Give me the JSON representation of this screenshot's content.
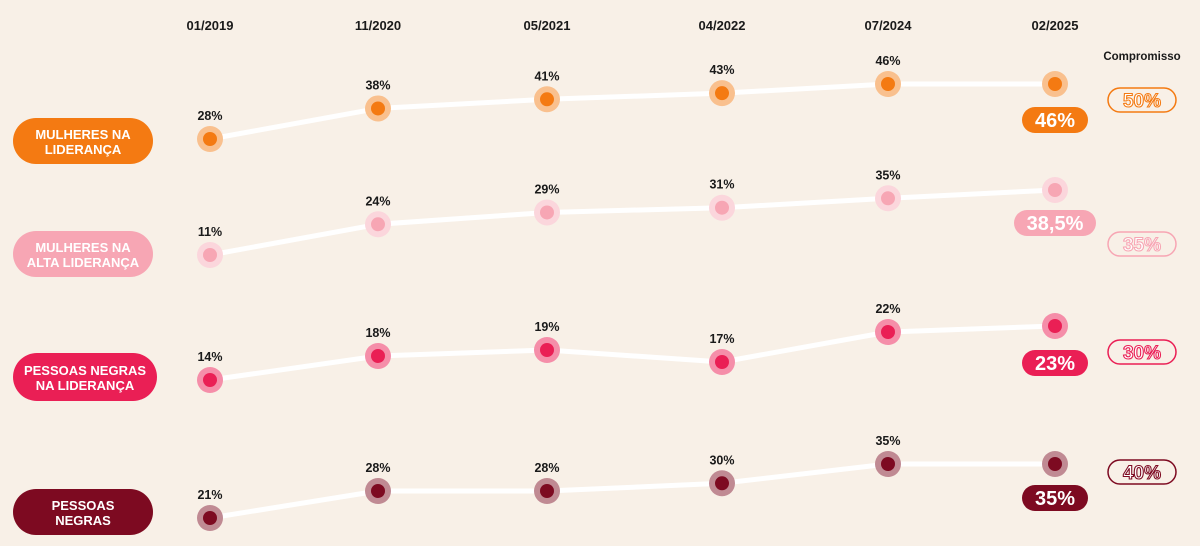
{
  "chart_data": {
    "type": "line",
    "categories": [
      "01/2019",
      "11/2020",
      "05/2021",
      "04/2022",
      "07/2024",
      "02/2025"
    ],
    "commitment_header": "Compromisso",
    "grid": false,
    "series": [
      {
        "name": "MULHERES NA LIDERANÇA",
        "values": [
          28,
          38,
          41,
          43,
          46,
          46
        ],
        "value_labels": [
          "28%",
          "38%",
          "41%",
          "43%",
          "46%",
          "46%"
        ],
        "current_label": "46%",
        "commitment_label": "50%",
        "color": "#f47a12",
        "halo_color": "#f9c08e",
        "label_text_color": "#ffffff",
        "badge_outline": false
      },
      {
        "name": "MULHERES NA ALTA LIDERANÇA",
        "values": [
          11,
          24,
          29,
          31,
          35,
          38.5
        ],
        "value_labels": [
          "11%",
          "24%",
          "29%",
          "31%",
          "35%",
          "38,5%"
        ],
        "current_label": "38,5%",
        "commitment_label": "35%",
        "color": "#f7a6b4",
        "halo_color": "#fbd6dc",
        "label_text_color": "#ffffff",
        "badge_outline": false
      },
      {
        "name": "PESSOAS NEGRAS NA LIDERANÇA",
        "values": [
          14,
          18,
          19,
          17,
          22,
          23
        ],
        "value_labels": [
          "14%",
          "18%",
          "19%",
          "17%",
          "22%",
          "23%"
        ],
        "current_label": "23%",
        "commitment_label": "30%",
        "color": "#ea1f55",
        "halo_color": "#f58ea9",
        "label_text_color": "#ffffff",
        "badge_outline": false
      },
      {
        "name": "PESSOAS NEGRAS",
        "values": [
          21,
          28,
          28,
          30,
          35,
          35
        ],
        "value_labels": [
          "21%",
          "28%",
          "28%",
          "30%",
          "35%",
          "35%"
        ],
        "current_label": "35%",
        "commitment_label": "40%",
        "color": "#7d0a21",
        "halo_color": "#c08a93",
        "label_text_color": "#ffffff",
        "badge_outline": false
      }
    ]
  }
}
